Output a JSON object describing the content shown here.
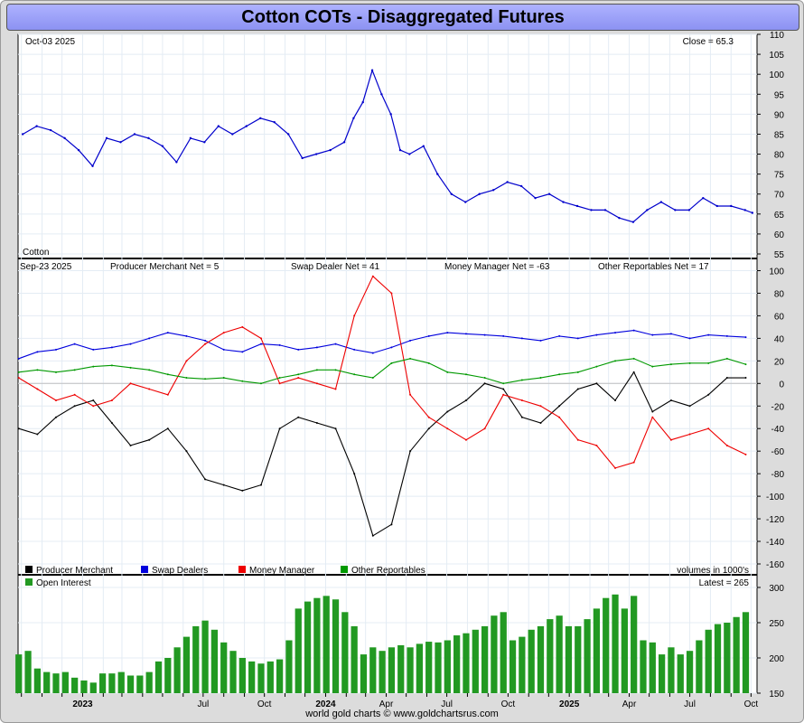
{
  "title": "Cotton COTs - Disaggregated Futures",
  "footer": "world gold charts © www.goldchartsrus.com",
  "chart_data": [
    {
      "type": "line",
      "name": "price",
      "date_label": "Oct-03  2025",
      "close_label": "Close = 65.3",
      "instrument_label": "Cotton",
      "ylim": [
        55,
        110
      ],
      "y_ticks": [
        55,
        60,
        65,
        70,
        75,
        80,
        85,
        90,
        95,
        100,
        105,
        110
      ],
      "color": "#0000cc",
      "x": [
        "2022-10-03",
        "2022-10-24",
        "2022-11-14",
        "2022-12-05",
        "2022-12-26",
        "2023-01-16",
        "2023-02-06",
        "2023-02-27",
        "2023-03-20",
        "2023-04-10",
        "2023-05-01",
        "2023-05-22",
        "2023-06-12",
        "2023-07-03",
        "2023-07-24",
        "2023-08-14",
        "2023-09-04",
        "2023-09-25",
        "2023-10-16",
        "2023-11-06",
        "2023-11-27",
        "2023-12-18",
        "2024-01-08",
        "2024-01-29",
        "2024-02-12",
        "2024-02-26",
        "2024-03-11",
        "2024-03-25",
        "2024-04-08",
        "2024-04-22",
        "2024-05-06",
        "2024-05-27",
        "2024-06-17",
        "2024-07-08",
        "2024-07-29",
        "2024-08-19",
        "2024-09-09",
        "2024-09-30",
        "2024-10-21",
        "2024-11-11",
        "2024-12-02",
        "2024-12-23",
        "2025-01-13",
        "2025-02-03",
        "2025-02-24",
        "2025-03-17",
        "2025-04-07",
        "2025-04-28",
        "2025-05-19",
        "2025-06-09",
        "2025-06-30",
        "2025-07-21",
        "2025-08-11",
        "2025-09-01",
        "2025-09-22",
        "2025-10-03"
      ],
      "values": [
        85,
        87,
        86,
        84,
        81,
        77,
        84,
        83,
        85,
        84,
        82,
        78,
        84,
        83,
        87,
        85,
        87,
        89,
        88,
        85,
        79,
        80,
        81,
        83,
        89,
        93,
        101,
        95,
        90,
        81,
        80,
        82,
        75,
        70,
        68,
        70,
        71,
        73,
        72,
        69,
        70,
        68,
        67,
        66,
        66,
        64,
        63,
        66,
        68,
        66,
        66,
        69,
        67,
        67,
        66,
        65.3
      ]
    },
    {
      "type": "line",
      "name": "cot",
      "date_label": "Sep-23  2025",
      "ylim": [
        -160,
        110
      ],
      "y_ticks": [
        -160,
        -140,
        -120,
        -100,
        -80,
        -60,
        -40,
        -20,
        0,
        20,
        40,
        60,
        80,
        100
      ],
      "series": [
        {
          "name": "Producer Merchant",
          "label": "Producer Merchant Net = 5",
          "color": "#000000",
          "x": [
            "2022-09-27",
            "2022-10-25",
            "2022-11-22",
            "2022-12-20",
            "2023-01-17",
            "2023-02-14",
            "2023-03-14",
            "2023-04-11",
            "2023-05-09",
            "2023-06-06",
            "2023-07-04",
            "2023-08-01",
            "2023-08-29",
            "2023-09-26",
            "2023-10-24",
            "2023-11-21",
            "2023-12-19",
            "2024-01-16",
            "2024-02-13",
            "2024-03-12",
            "2024-04-09",
            "2024-05-07",
            "2024-06-04",
            "2024-07-02",
            "2024-07-30",
            "2024-08-27",
            "2024-09-24",
            "2024-10-22",
            "2024-11-19",
            "2024-12-17",
            "2025-01-14",
            "2025-02-11",
            "2025-03-11",
            "2025-04-08",
            "2025-05-06",
            "2025-06-03",
            "2025-07-01",
            "2025-07-29",
            "2025-08-26",
            "2025-09-23"
          ],
          "values": [
            -40,
            -45,
            -30,
            -20,
            -15,
            -35,
            -55,
            -50,
            -40,
            -60,
            -85,
            -90,
            -95,
            -90,
            -40,
            -30,
            -35,
            -40,
            -80,
            -135,
            -125,
            -60,
            -40,
            -25,
            -15,
            0,
            -5,
            -30,
            -35,
            -20,
            -5,
            0,
            -15,
            10,
            -25,
            -15,
            -20,
            -10,
            5,
            5
          ]
        },
        {
          "name": "Swap Dealers",
          "label": "Swap Dealer Net = 41",
          "color": "#0000dd",
          "x": [
            "2022-09-27",
            "2022-10-25",
            "2022-11-22",
            "2022-12-20",
            "2023-01-17",
            "2023-02-14",
            "2023-03-14",
            "2023-04-11",
            "2023-05-09",
            "2023-06-06",
            "2023-07-04",
            "2023-08-01",
            "2023-08-29",
            "2023-09-26",
            "2023-10-24",
            "2023-11-21",
            "2023-12-19",
            "2024-01-16",
            "2024-02-13",
            "2024-03-12",
            "2024-04-09",
            "2024-05-07",
            "2024-06-04",
            "2024-07-02",
            "2024-07-30",
            "2024-08-27",
            "2024-09-24",
            "2024-10-22",
            "2024-11-19",
            "2024-12-17",
            "2025-01-14",
            "2025-02-11",
            "2025-03-11",
            "2025-04-08",
            "2025-05-06",
            "2025-06-03",
            "2025-07-01",
            "2025-07-29",
            "2025-08-26",
            "2025-09-23"
          ],
          "values": [
            22,
            28,
            30,
            35,
            30,
            32,
            35,
            40,
            45,
            42,
            38,
            30,
            28,
            35,
            34,
            30,
            32,
            35,
            30,
            27,
            32,
            38,
            42,
            45,
            44,
            43,
            42,
            40,
            38,
            42,
            40,
            43,
            45,
            47,
            43,
            44,
            40,
            43,
            42,
            41
          ]
        },
        {
          "name": "Money Manager",
          "label": "Money Manager Net = -63",
          "color": "#ee0000",
          "x": [
            "2022-09-27",
            "2022-10-25",
            "2022-11-22",
            "2022-12-20",
            "2023-01-17",
            "2023-02-14",
            "2023-03-14",
            "2023-04-11",
            "2023-05-09",
            "2023-06-06",
            "2023-07-04",
            "2023-08-01",
            "2023-08-29",
            "2023-09-26",
            "2023-10-24",
            "2023-11-21",
            "2023-12-19",
            "2024-01-16",
            "2024-02-13",
            "2024-03-12",
            "2024-04-09",
            "2024-05-07",
            "2024-06-04",
            "2024-07-02",
            "2024-07-30",
            "2024-08-27",
            "2024-09-24",
            "2024-10-22",
            "2024-11-19",
            "2024-12-17",
            "2025-01-14",
            "2025-02-11",
            "2025-03-11",
            "2025-04-08",
            "2025-05-06",
            "2025-06-03",
            "2025-07-01",
            "2025-07-29",
            "2025-08-26",
            "2025-09-23"
          ],
          "values": [
            5,
            -5,
            -15,
            -10,
            -20,
            -15,
            0,
            -5,
            -10,
            20,
            35,
            45,
            50,
            40,
            0,
            5,
            0,
            -5,
            60,
            95,
            80,
            -10,
            -30,
            -40,
            -50,
            -40,
            -10,
            -15,
            -20,
            -30,
            -50,
            -55,
            -75,
            -70,
            -30,
            -50,
            -45,
            -40,
            -55,
            -63
          ]
        },
        {
          "name": "Other Reportables",
          "label": "Other Reportables Net = 17",
          "color": "#009900",
          "x": [
            "2022-09-27",
            "2022-10-25",
            "2022-11-22",
            "2022-12-20",
            "2023-01-17",
            "2023-02-14",
            "2023-03-14",
            "2023-04-11",
            "2023-05-09",
            "2023-06-06",
            "2023-07-04",
            "2023-08-01",
            "2023-08-29",
            "2023-09-26",
            "2023-10-24",
            "2023-11-21",
            "2023-12-19",
            "2024-01-16",
            "2024-02-13",
            "2024-03-12",
            "2024-04-09",
            "2024-05-07",
            "2024-06-04",
            "2024-07-02",
            "2024-07-30",
            "2024-08-27",
            "2024-09-24",
            "2024-10-22",
            "2024-11-19",
            "2024-12-17",
            "2025-01-14",
            "2025-02-11",
            "2025-03-11",
            "2025-04-08",
            "2025-05-06",
            "2025-06-03",
            "2025-07-01",
            "2025-07-29",
            "2025-08-26",
            "2025-09-23"
          ],
          "values": [
            10,
            12,
            10,
            12,
            15,
            16,
            14,
            12,
            8,
            5,
            4,
            5,
            2,
            0,
            5,
            8,
            12,
            12,
            8,
            5,
            18,
            22,
            18,
            10,
            8,
            5,
            0,
            3,
            5,
            8,
            10,
            15,
            20,
            22,
            15,
            17,
            18,
            18,
            22,
            17
          ]
        }
      ],
      "legend": [
        "Producer Merchant",
        "Swap Dealers",
        "Money Manager",
        "Other Reportables"
      ],
      "units_note": "volumes in 1000's"
    },
    {
      "type": "bar",
      "name": "open_interest",
      "legend": "Open Interest",
      "latest_label": "Latest = 265",
      "ylim": [
        150,
        300
      ],
      "y_ticks": [
        150,
        200,
        250,
        300
      ],
      "color": "#229922",
      "x": [
        "2022-09-27",
        "2022-10-11",
        "2022-10-25",
        "2022-11-08",
        "2022-11-22",
        "2022-12-06",
        "2022-12-20",
        "2023-01-03",
        "2023-01-17",
        "2023-01-31",
        "2023-02-14",
        "2023-02-28",
        "2023-03-14",
        "2023-03-28",
        "2023-04-11",
        "2023-04-25",
        "2023-05-09",
        "2023-05-23",
        "2023-06-06",
        "2023-06-20",
        "2023-07-04",
        "2023-07-18",
        "2023-08-01",
        "2023-08-15",
        "2023-08-29",
        "2023-09-12",
        "2023-09-26",
        "2023-10-10",
        "2023-10-24",
        "2023-11-07",
        "2023-11-21",
        "2023-12-05",
        "2023-12-19",
        "2024-01-02",
        "2024-01-16",
        "2024-01-30",
        "2024-02-13",
        "2024-02-27",
        "2024-03-12",
        "2024-03-26",
        "2024-04-09",
        "2024-04-23",
        "2024-05-07",
        "2024-05-21",
        "2024-06-04",
        "2024-06-18",
        "2024-07-02",
        "2024-07-16",
        "2024-07-30",
        "2024-08-13",
        "2024-08-27",
        "2024-09-10",
        "2024-09-24",
        "2024-10-08",
        "2024-10-22",
        "2024-11-05",
        "2024-11-19",
        "2024-12-03",
        "2024-12-17",
        "2024-12-31",
        "2025-01-14",
        "2025-01-28",
        "2025-02-11",
        "2025-02-25",
        "2025-03-11",
        "2025-03-25",
        "2025-04-08",
        "2025-04-22",
        "2025-05-06",
        "2025-05-20",
        "2025-06-03",
        "2025-06-17",
        "2025-07-01",
        "2025-07-15",
        "2025-07-29",
        "2025-08-12",
        "2025-08-26",
        "2025-09-09",
        "2025-09-23"
      ],
      "values": [
        205,
        210,
        185,
        180,
        178,
        180,
        172,
        168,
        165,
        178,
        178,
        180,
        175,
        175,
        180,
        195,
        200,
        215,
        230,
        245,
        253,
        240,
        222,
        210,
        200,
        195,
        192,
        195,
        198,
        225,
        270,
        280,
        285,
        288,
        283,
        265,
        245,
        205,
        215,
        210,
        215,
        218,
        215,
        220,
        223,
        222,
        225,
        232,
        235,
        240,
        245,
        260,
        265,
        225,
        230,
        240,
        245,
        255,
        260,
        245,
        245,
        255,
        270,
        285,
        290,
        270,
        288,
        225,
        222,
        205,
        215,
        205,
        210,
        225,
        240,
        248,
        250,
        258,
        265
      ]
    }
  ]
}
